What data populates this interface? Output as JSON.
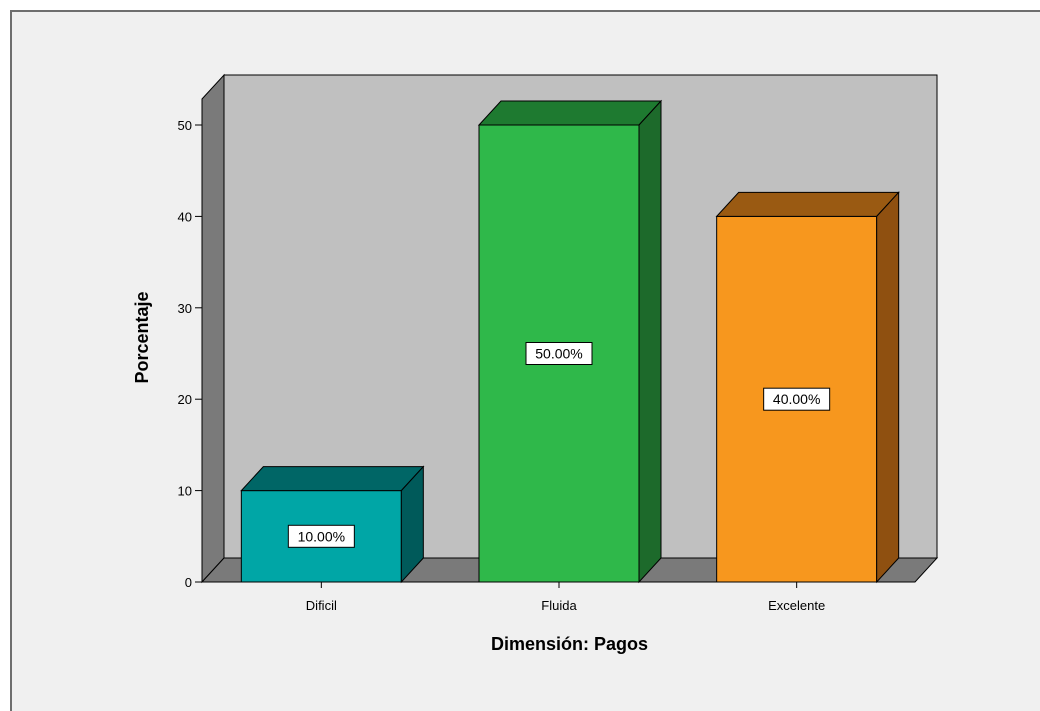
{
  "chart_data": {
    "type": "bar",
    "title": "",
    "xlabel": "Dimensión: Pagos",
    "ylabel": "Porcentaje",
    "ylim": [
      0,
      50
    ],
    "yticks": [
      0,
      10,
      20,
      30,
      40,
      50
    ],
    "yticks_labels": [
      "0",
      "10",
      "20",
      "30",
      "40",
      "50"
    ],
    "categories": [
      "Dificil",
      "Fluida",
      "Excelente"
    ],
    "values": [
      10,
      50,
      40
    ],
    "data_labels": [
      "10.00%",
      "50.00%",
      "40.00%"
    ],
    "colors": [
      {
        "front": "#00a6a6",
        "top": "#006666",
        "side": "#005a5a"
      },
      {
        "front": "#2fb84a",
        "top": "#1e7a30",
        "side": "#1d6a2b"
      },
      {
        "front": "#f7971e",
        "top": "#9a5a12",
        "side": "#8f5010"
      }
    ],
    "style": {
      "back_wall": "#c0c0c0",
      "side_wall": "#7a7a7a",
      "floor": "#7a7a7a",
      "three_d": true,
      "grid": false
    }
  }
}
